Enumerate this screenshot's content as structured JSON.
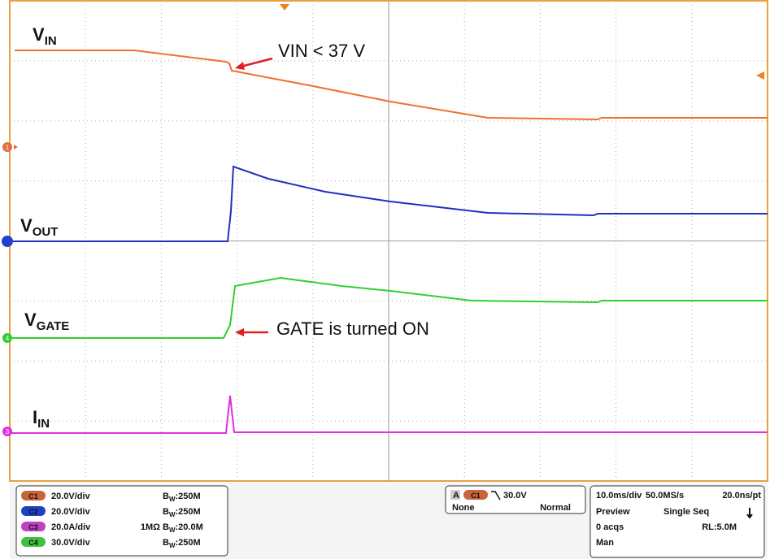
{
  "trace_labels": [
    {
      "main": "V",
      "sub": "IN"
    },
    {
      "main": "V",
      "sub": "OUT"
    },
    {
      "main": "V",
      "sub": "GATE"
    },
    {
      "main": "I",
      "sub": "IN"
    }
  ],
  "annotations": [
    "VIN < 37 V",
    "GATE is turned ON"
  ],
  "channel_markers": [
    "1",
    "4",
    "3"
  ],
  "status": {
    "bw_symbol": "B",
    "bw_sub": "W",
    "channels": [
      {
        "badge": "C1",
        "scale": "20.0V/div",
        "bw": ":250M"
      },
      {
        "badge": "C2",
        "scale": "20.0V/div",
        "bw": ":250M"
      },
      {
        "badge": "C3",
        "scale": "20.0A/div",
        "impedance": "1MΩ",
        "bw": ":20.0M"
      },
      {
        "badge": "C4",
        "scale": "30.0V/div",
        "bw": ":250M"
      }
    ],
    "trigger": {
      "source": "A",
      "channel": "C1",
      "level": "30.0V",
      "coupling": "None",
      "mode": "Normal"
    },
    "acquisition": {
      "timebase": "10.0ms/div",
      "sample_rate": "50.0MS/s",
      "resolution": "20.0ns/pt",
      "state": "Preview",
      "sequence": "Single Seq",
      "acqs": "0 acqs",
      "record_length": "RL:5.0M",
      "mode": "Man"
    }
  }
}
